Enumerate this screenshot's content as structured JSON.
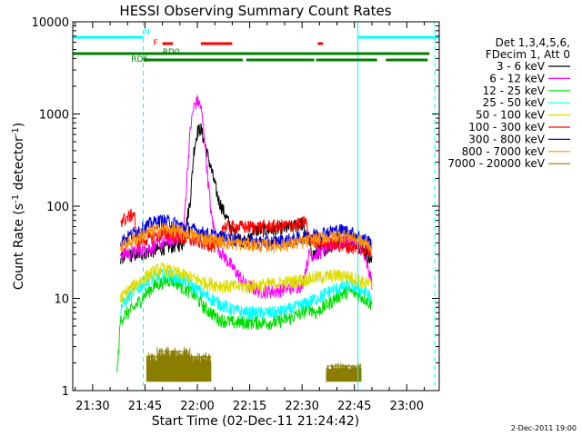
{
  "chart_data": {
    "type": "line",
    "title": "HESSI Observing Summary Count Rates",
    "xlabel": "Start Time (02-Dec-11 21:24:42)",
    "ylabel_main": "Count Rate (s",
    "ylabel_sup1": "-1",
    "ylabel_mid": " detector",
    "ylabel_sup2": "-1",
    "ylabel_end": ")",
    "footer": "2-Dec-2011 19:00",
    "y_scale": "log",
    "ylim": [
      1,
      10000
    ],
    "xlim_minutes": [
      -5.7,
      99.3
    ],
    "xlim_start": "21:24:42",
    "x_ticks": [
      {
        "label": "21:30",
        "m": 0
      },
      {
        "label": "21:45",
        "m": 15
      },
      {
        "label": "22:00",
        "m": 30
      },
      {
        "label": "22:15",
        "m": 45
      },
      {
        "label": "22:30",
        "m": 60
      },
      {
        "label": "22:45",
        "m": 75
      },
      {
        "label": "23:00",
        "m": 90
      }
    ],
    "y_ticks": [
      {
        "label": "1",
        "v": 1
      },
      {
        "label": "10",
        "v": 10
      },
      {
        "label": "100",
        "v": 100
      },
      {
        "label": "1000",
        "v": 1000
      },
      {
        "label": "10000",
        "v": 10000
      }
    ],
    "legend": {
      "header": [
        "Det 1,3,4,5,6,",
        "FDecim 1, Att 0"
      ],
      "placement": "right",
      "entries": [
        {
          "label": "3 - 6 keV",
          "color": "#000000"
        },
        {
          "label": "6 - 12 keV",
          "color": "#ff00ff"
        },
        {
          "label": "12 - 25 keV",
          "color": "#00dd00"
        },
        {
          "label": "25 - 50 keV",
          "color": "#00ffff"
        },
        {
          "label": "50 - 100 keV",
          "color": "#dddd00"
        },
        {
          "label": "100 - 300 keV",
          "color": "#ff0000"
        },
        {
          "label": "300 - 800 keV",
          "color": "#0000dd"
        },
        {
          "label": "800 - 7000 keV",
          "color": "#ff8c00"
        },
        {
          "label": "7000 - 20000 keV",
          "color": "#8b7d00"
        }
      ]
    },
    "series": [
      {
        "name": "3 - 6 keV",
        "color": "#000000",
        "points": [
          [
            8,
            28
          ],
          [
            12,
            30
          ],
          [
            16,
            32
          ],
          [
            20,
            35
          ],
          [
            24,
            38
          ],
          [
            26,
            40
          ],
          [
            28,
            120
          ],
          [
            29,
            400
          ],
          [
            30,
            650
          ],
          [
            31,
            700
          ],
          [
            32,
            500
          ],
          [
            34,
            250
          ],
          [
            36,
            120
          ],
          [
            38,
            80
          ],
          [
            40,
            55
          ],
          [
            42,
            45
          ],
          [
            44,
            40
          ],
          [
            46,
            55
          ],
          [
            50,
            55
          ],
          [
            56,
            58
          ],
          [
            60,
            65
          ],
          [
            63,
            30
          ],
          [
            66,
            34
          ],
          [
            70,
            40
          ],
          [
            74,
            45
          ],
          [
            76,
            40
          ],
          [
            78,
            32
          ],
          [
            80,
            25
          ]
        ]
      },
      {
        "name": "6 - 12 keV",
        "color": "#ff00ff",
        "points": [
          [
            8,
            30
          ],
          [
            12,
            32
          ],
          [
            16,
            35
          ],
          [
            20,
            40
          ],
          [
            24,
            45
          ],
          [
            26,
            48
          ],
          [
            27,
            200
          ],
          [
            28,
            700
          ],
          [
            29,
            1200
          ],
          [
            30,
            1400
          ],
          [
            31,
            1200
          ],
          [
            32,
            600
          ],
          [
            33,
            200
          ],
          [
            34,
            80
          ],
          [
            36,
            35
          ],
          [
            40,
            22
          ],
          [
            44,
            14
          ],
          [
            48,
            12
          ],
          [
            52,
            12
          ],
          [
            56,
            13
          ],
          [
            60,
            14
          ],
          [
            62,
            30
          ],
          [
            64,
            30
          ],
          [
            67,
            35
          ],
          [
            70,
            40
          ],
          [
            74,
            42
          ],
          [
            77,
            35
          ],
          [
            80,
            15
          ]
        ]
      },
      {
        "name": "12 - 25 keV",
        "color": "#00dd00",
        "points": [
          [
            7,
            1.5
          ],
          [
            8,
            6
          ],
          [
            10,
            7
          ],
          [
            12,
            8
          ],
          [
            14,
            10
          ],
          [
            16,
            12
          ],
          [
            18,
            14
          ],
          [
            20,
            15
          ],
          [
            22,
            16
          ],
          [
            24,
            15
          ],
          [
            26,
            13
          ],
          [
            28,
            12
          ],
          [
            30,
            10
          ],
          [
            32,
            8
          ],
          [
            34,
            7
          ],
          [
            36,
            6
          ],
          [
            40,
            5.5
          ],
          [
            44,
            5.5
          ],
          [
            48,
            5.5
          ],
          [
            52,
            5.5
          ],
          [
            56,
            6
          ],
          [
            60,
            7
          ],
          [
            62,
            8
          ],
          [
            64,
            7
          ],
          [
            66,
            8
          ],
          [
            68,
            9
          ],
          [
            70,
            10.5
          ],
          [
            72,
            11.5
          ],
          [
            74,
            12
          ],
          [
            76,
            11
          ],
          [
            78,
            10
          ],
          [
            80,
            8.5
          ]
        ]
      },
      {
        "name": "25 - 50 keV",
        "color": "#00ffff",
        "points": [
          [
            8,
            8
          ],
          [
            10,
            10
          ],
          [
            12,
            12
          ],
          [
            14,
            14
          ],
          [
            16,
            16
          ],
          [
            18,
            17
          ],
          [
            20,
            18
          ],
          [
            22,
            18
          ],
          [
            24,
            17
          ],
          [
            26,
            16
          ],
          [
            28,
            14
          ],
          [
            30,
            12.5
          ],
          [
            32,
            11
          ],
          [
            36,
            9
          ],
          [
            40,
            7.5
          ],
          [
            44,
            7
          ],
          [
            48,
            7
          ],
          [
            52,
            7
          ],
          [
            56,
            7.5
          ],
          [
            60,
            8.5
          ],
          [
            64,
            10
          ],
          [
            68,
            12
          ],
          [
            72,
            13.5
          ],
          [
            74,
            14
          ],
          [
            76,
            13
          ],
          [
            78,
            12
          ],
          [
            80,
            10
          ]
        ]
      },
      {
        "name": "50 - 100 keV",
        "color": "#dddd00",
        "points": [
          [
            8,
            10
          ],
          [
            10,
            12
          ],
          [
            12,
            14
          ],
          [
            14,
            16
          ],
          [
            16,
            18
          ],
          [
            18,
            20
          ],
          [
            20,
            21
          ],
          [
            22,
            20
          ],
          [
            24,
            19
          ],
          [
            26,
            18
          ],
          [
            28,
            17
          ],
          [
            30,
            16
          ],
          [
            32,
            15
          ],
          [
            36,
            14
          ],
          [
            40,
            13.5
          ],
          [
            44,
            13.5
          ],
          [
            48,
            14
          ],
          [
            52,
            14.5
          ],
          [
            56,
            15
          ],
          [
            60,
            16
          ],
          [
            64,
            17
          ],
          [
            68,
            17.5
          ],
          [
            72,
            18
          ],
          [
            76,
            16
          ],
          [
            80,
            14
          ]
        ]
      },
      {
        "name": "100 - 300 keV",
        "color": "#ff0000",
        "points": [
          [
            8,
            70
          ],
          [
            10,
            75
          ],
          [
            12,
            85
          ],
          [
            12.5,
            40
          ],
          [
            14,
            43
          ],
          [
            16,
            45
          ],
          [
            18,
            48
          ],
          [
            20,
            50
          ],
          [
            22,
            50
          ],
          [
            24,
            48
          ],
          [
            26,
            45
          ],
          [
            28,
            43
          ],
          [
            30,
            42
          ],
          [
            32,
            40
          ],
          [
            34,
            38
          ],
          [
            36,
            36
          ],
          [
            37,
            60
          ],
          [
            40,
            60
          ],
          [
            44,
            60
          ],
          [
            48,
            60
          ],
          [
            52,
            61
          ],
          [
            56,
            62
          ],
          [
            60,
            65
          ],
          [
            61,
            72
          ],
          [
            62,
            45
          ],
          [
            64,
            43
          ],
          [
            66,
            41
          ],
          [
            68,
            39
          ],
          [
            70,
            38
          ],
          [
            74,
            36
          ],
          [
            78,
            34
          ],
          [
            80,
            32
          ]
        ]
      },
      {
        "name": "300 - 800 keV",
        "color": "#0000dd",
        "points": [
          [
            8,
            42
          ],
          [
            10,
            46
          ],
          [
            12,
            52
          ],
          [
            14,
            58
          ],
          [
            16,
            63
          ],
          [
            18,
            68
          ],
          [
            20,
            70
          ],
          [
            22,
            68
          ],
          [
            24,
            64
          ],
          [
            26,
            60
          ],
          [
            28,
            57
          ],
          [
            30,
            54
          ],
          [
            32,
            51
          ],
          [
            36,
            47
          ],
          [
            40,
            44
          ],
          [
            44,
            42
          ],
          [
            48,
            41
          ],
          [
            52,
            41
          ],
          [
            56,
            43
          ],
          [
            60,
            46
          ],
          [
            64,
            50
          ],
          [
            68,
            53
          ],
          [
            70,
            55
          ],
          [
            72,
            55
          ],
          [
            74,
            52
          ],
          [
            76,
            48
          ],
          [
            78,
            44
          ],
          [
            80,
            40
          ]
        ]
      },
      {
        "name": "800 - 7000 keV",
        "color": "#ff8c00",
        "points": [
          [
            8,
            36
          ],
          [
            10,
            40
          ],
          [
            12,
            44
          ],
          [
            14,
            48
          ],
          [
            16,
            52
          ],
          [
            18,
            55
          ],
          [
            20,
            57
          ],
          [
            22,
            56
          ],
          [
            24,
            54
          ],
          [
            26,
            52
          ],
          [
            28,
            50
          ],
          [
            30,
            47
          ],
          [
            32,
            45
          ],
          [
            36,
            42
          ],
          [
            40,
            40
          ],
          [
            44,
            39
          ],
          [
            48,
            38
          ],
          [
            52,
            38
          ],
          [
            56,
            39
          ],
          [
            60,
            41
          ],
          [
            64,
            44
          ],
          [
            68,
            47
          ],
          [
            70,
            48
          ],
          [
            72,
            48
          ],
          [
            74,
            46
          ],
          [
            76,
            43
          ],
          [
            78,
            40
          ],
          [
            80,
            37
          ]
        ]
      }
    ],
    "bursts_7000_20000_keV": [
      {
        "start": 15.5,
        "end": 34.0,
        "low": 1.25,
        "high": 2.6
      },
      {
        "start": 18.5,
        "end": 28.0,
        "low": 1.25,
        "high": 3.0
      },
      {
        "start": 67.0,
        "end": 77.0,
        "low": 1.25,
        "high": 2.0
      }
    ],
    "flag_bars": {
      "cyan_bar": {
        "color": "#00ffff",
        "spans": [
          [
            -5.7,
            14.5
          ],
          [
            76.0,
            99.3
          ]
        ]
      },
      "red_flare_marks": {
        "color": "#ff0000",
        "spans": [
          [
            20.0,
            23.0
          ],
          [
            31.0,
            40.0
          ],
          [
            64.5,
            66.0
          ]
        ]
      },
      "green_RD0_bar": {
        "color": "#008000",
        "spans": [
          [
            -5.7,
            96.5
          ]
        ]
      },
      "green_RD6_bar": {
        "color": "#008000",
        "spans": [
          [
            14.5,
            43.0
          ],
          [
            44.0,
            63.5
          ],
          [
            64.0,
            81.5
          ],
          [
            84.0,
            96.0
          ]
        ]
      }
    },
    "flag_labels": [
      {
        "text": "N",
        "color": "#00ffff",
        "m": 15.5,
        "row": "top"
      },
      {
        "text": "F",
        "color": "#ff0000",
        "m": 18.0,
        "row": "mid"
      },
      {
        "text": "RD0",
        "color": "#008000",
        "m": 22.5,
        "row": "low"
      },
      {
        "text": "RD6",
        "color": "#008000",
        "m": 13.5,
        "row": "bottom"
      }
    ],
    "vertical_markers": [
      {
        "m": -5.7,
        "color": "#00ffff",
        "style": "solid"
      },
      {
        "m": 14.5,
        "color": "#00ffff",
        "style": "dashed"
      },
      {
        "m": 76.0,
        "color": "#00ffff",
        "style": "solid"
      },
      {
        "m": 98.0,
        "color": "#00ffff",
        "style": "dashed"
      }
    ]
  }
}
